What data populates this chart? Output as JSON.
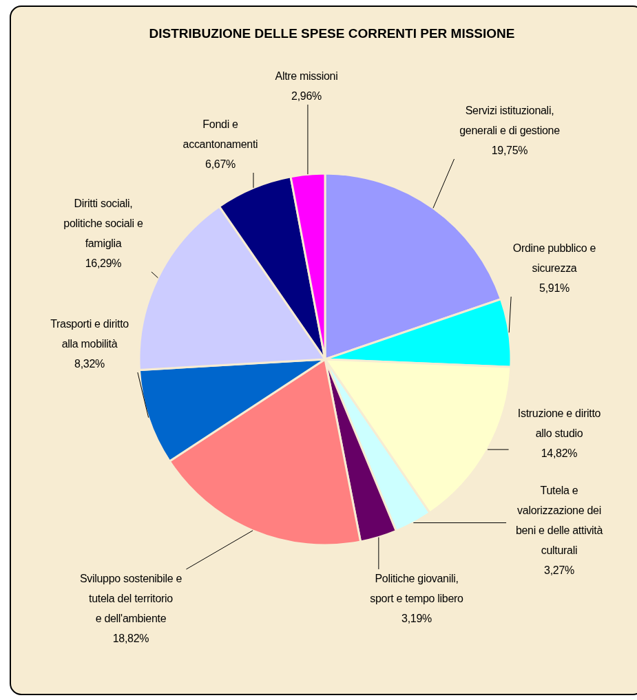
{
  "chart_data": {
    "type": "pie",
    "title": "DISTRIBUZIONE DELLE SPESE CORRENTI PER MISSIONE",
    "categories": [
      "Servizi istituzionali, generali e di gestione",
      "Ordine pubblico e sicurezza",
      "Istruzione e diritto allo studio",
      "Tutela e valorizzazione dei beni e delle attività culturali",
      "Politiche giovanili, sport e tempo libero",
      "Sviluppo sostenibile e tutela del territorio e dell'ambiente",
      "Trasporti e diritto alla mobilità",
      "Diritti sociali, politiche sociali e famiglia",
      "Fondi e accantonamenti",
      "Altre missioni"
    ],
    "values": [
      19.75,
      5.91,
      14.82,
      3.27,
      3.19,
      18.82,
      8.32,
      16.29,
      6.67,
      2.96
    ],
    "colors": [
      "#9999ff",
      "#00ffff",
      "#ffffcc",
      "#ccffff",
      "#660066",
      "#ff8080",
      "#0066cc",
      "#ccccff",
      "#000080",
      "#ff00ff"
    ],
    "value_labels": [
      "19,75%",
      "5,91%",
      "14,82%",
      "3,27%",
      "3,19%",
      "18,82%",
      "8,32%",
      "16,29%",
      "6,67%",
      "2,96%"
    ]
  }
}
